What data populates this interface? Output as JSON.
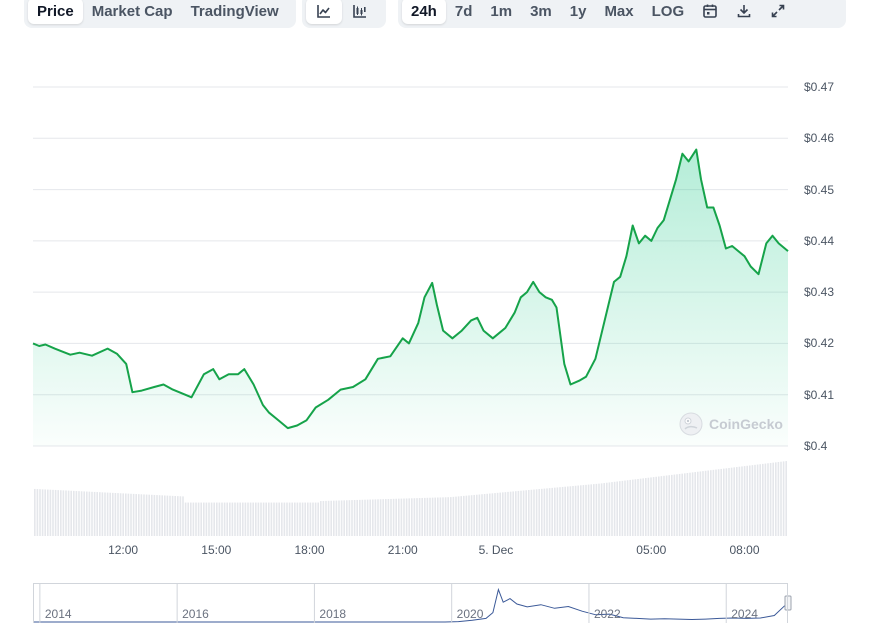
{
  "toolbar": {
    "view_tabs": [
      "Price",
      "Market Cap",
      "TradingView"
    ],
    "active_view": "Price",
    "chart_style_icons": [
      "line-chart-icon",
      "candlestick-chart-icon"
    ],
    "range_tabs": [
      "24h",
      "7d",
      "1m",
      "3m",
      "1y",
      "Max",
      "LOG"
    ],
    "active_range": "24h",
    "action_icons": [
      "calendar-icon",
      "download-icon",
      "fullscreen-icon"
    ]
  },
  "watermark": "CoinGecko",
  "colors": {
    "line": "#16a34a",
    "fill": "#16c784",
    "volume": "#e5e7eb",
    "navigator": "#3b5998"
  },
  "chart_data": {
    "type": "area",
    "ylim": [
      0.4,
      0.47
    ],
    "y_ticks": [
      "$0.47",
      "$0.46",
      "$0.45",
      "$0.44",
      "$0.43",
      "$0.42",
      "$0.41",
      "$0.4"
    ],
    "y_tick_values": [
      0.47,
      0.46,
      0.45,
      0.44,
      0.43,
      0.42,
      0.41,
      0.4
    ],
    "x_range_hours": [
      9.1,
      33.4
    ],
    "x_ticks": [
      "12:00",
      "15:00",
      "18:00",
      "21:00",
      "5. Dec",
      "05:00",
      "08:00"
    ],
    "x_tick_hours": [
      12,
      15,
      18,
      21,
      24,
      29,
      32
    ],
    "series": [
      {
        "points": [
          [
            9.1,
            0.42
          ],
          [
            9.3,
            0.4195
          ],
          [
            9.5,
            0.4198
          ],
          [
            9.8,
            0.419
          ],
          [
            10.0,
            0.4185
          ],
          [
            10.3,
            0.4178
          ],
          [
            10.6,
            0.4182
          ],
          [
            11.0,
            0.4176
          ],
          [
            11.5,
            0.419
          ],
          [
            11.8,
            0.418
          ],
          [
            12.1,
            0.416
          ],
          [
            12.3,
            0.4105
          ],
          [
            12.6,
            0.4108
          ],
          [
            13.0,
            0.4115
          ],
          [
            13.3,
            0.412
          ],
          [
            13.6,
            0.411
          ],
          [
            14.0,
            0.41
          ],
          [
            14.2,
            0.4095
          ],
          [
            14.6,
            0.414
          ],
          [
            14.9,
            0.415
          ],
          [
            15.1,
            0.413
          ],
          [
            15.4,
            0.414
          ],
          [
            15.7,
            0.414
          ],
          [
            15.9,
            0.415
          ],
          [
            16.2,
            0.412
          ],
          [
            16.5,
            0.408
          ],
          [
            16.7,
            0.4065
          ],
          [
            17.0,
            0.405
          ],
          [
            17.3,
            0.4035
          ],
          [
            17.6,
            0.404
          ],
          [
            17.9,
            0.405
          ],
          [
            18.2,
            0.4075
          ],
          [
            18.6,
            0.409
          ],
          [
            19.0,
            0.411
          ],
          [
            19.4,
            0.4115
          ],
          [
            19.8,
            0.413
          ],
          [
            20.2,
            0.417
          ],
          [
            20.6,
            0.4175
          ],
          [
            21.0,
            0.421
          ],
          [
            21.2,
            0.42
          ],
          [
            21.5,
            0.424
          ],
          [
            21.7,
            0.429
          ],
          [
            21.95,
            0.4318
          ],
          [
            22.1,
            0.4275
          ],
          [
            22.3,
            0.4225
          ],
          [
            22.6,
            0.421
          ],
          [
            22.9,
            0.4225
          ],
          [
            23.2,
            0.4245
          ],
          [
            23.4,
            0.425
          ],
          [
            23.6,
            0.4225
          ],
          [
            23.9,
            0.421
          ],
          [
            24.1,
            0.422
          ],
          [
            24.3,
            0.423
          ],
          [
            24.6,
            0.426
          ],
          [
            24.8,
            0.429
          ],
          [
            25.0,
            0.43
          ],
          [
            25.2,
            0.432
          ],
          [
            25.4,
            0.43
          ],
          [
            25.6,
            0.429
          ],
          [
            25.8,
            0.4285
          ],
          [
            25.95,
            0.427
          ],
          [
            26.2,
            0.416
          ],
          [
            26.4,
            0.412
          ],
          [
            26.7,
            0.4128
          ],
          [
            26.9,
            0.4135
          ],
          [
            27.2,
            0.417
          ],
          [
            27.4,
            0.422
          ],
          [
            27.6,
            0.427
          ],
          [
            27.8,
            0.432
          ],
          [
            28.0,
            0.433
          ],
          [
            28.2,
            0.437
          ],
          [
            28.4,
            0.443
          ],
          [
            28.6,
            0.4395
          ],
          [
            28.8,
            0.441
          ],
          [
            29.0,
            0.44
          ],
          [
            29.2,
            0.4425
          ],
          [
            29.4,
            0.444
          ],
          [
            29.6,
            0.448
          ],
          [
            29.8,
            0.452
          ],
          [
            30.0,
            0.457
          ],
          [
            30.2,
            0.4555
          ],
          [
            30.45,
            0.4578
          ],
          [
            30.6,
            0.452
          ],
          [
            30.8,
            0.4465
          ],
          [
            31.0,
            0.4465
          ],
          [
            31.2,
            0.443
          ],
          [
            31.4,
            0.4385
          ],
          [
            31.6,
            0.439
          ],
          [
            31.8,
            0.438
          ],
          [
            32.0,
            0.437
          ],
          [
            32.2,
            0.435
          ],
          [
            32.45,
            0.4335
          ],
          [
            32.7,
            0.4395
          ],
          [
            32.9,
            0.441
          ],
          [
            33.1,
            0.4395
          ],
          [
            33.4,
            0.438
          ]
        ]
      }
    ]
  },
  "navigator": {
    "labels": [
      "2014",
      "2016",
      "2018",
      "2020",
      "2022",
      "2024"
    ],
    "label_years": [
      2014,
      2016,
      2018,
      2020,
      2022,
      2024
    ],
    "year_range": [
      2013.9,
      2024.9
    ],
    "points": [
      [
        2013.9,
        0.0
      ],
      [
        2019.9,
        0.0
      ],
      [
        2020.1,
        0.01
      ],
      [
        2020.3,
        0.05
      ],
      [
        2020.5,
        0.1
      ],
      [
        2020.6,
        0.26
      ],
      [
        2020.68,
        0.9
      ],
      [
        2020.75,
        0.55
      ],
      [
        2020.85,
        0.65
      ],
      [
        2020.95,
        0.5
      ],
      [
        2021.1,
        0.42
      ],
      [
        2021.3,
        0.48
      ],
      [
        2021.5,
        0.38
      ],
      [
        2021.7,
        0.43
      ],
      [
        2021.9,
        0.3
      ],
      [
        2022.1,
        0.2
      ],
      [
        2022.3,
        0.22
      ],
      [
        2022.5,
        0.12
      ],
      [
        2022.7,
        0.1
      ],
      [
        2022.9,
        0.08
      ],
      [
        2023.1,
        0.09
      ],
      [
        2023.3,
        0.08
      ],
      [
        2023.5,
        0.07
      ],
      [
        2023.7,
        0.08
      ],
      [
        2023.9,
        0.1
      ],
      [
        2024.1,
        0.11
      ],
      [
        2024.3,
        0.1
      ],
      [
        2024.5,
        0.11
      ],
      [
        2024.7,
        0.18
      ],
      [
        2024.85,
        0.45
      ],
      [
        2024.9,
        0.4
      ]
    ]
  }
}
